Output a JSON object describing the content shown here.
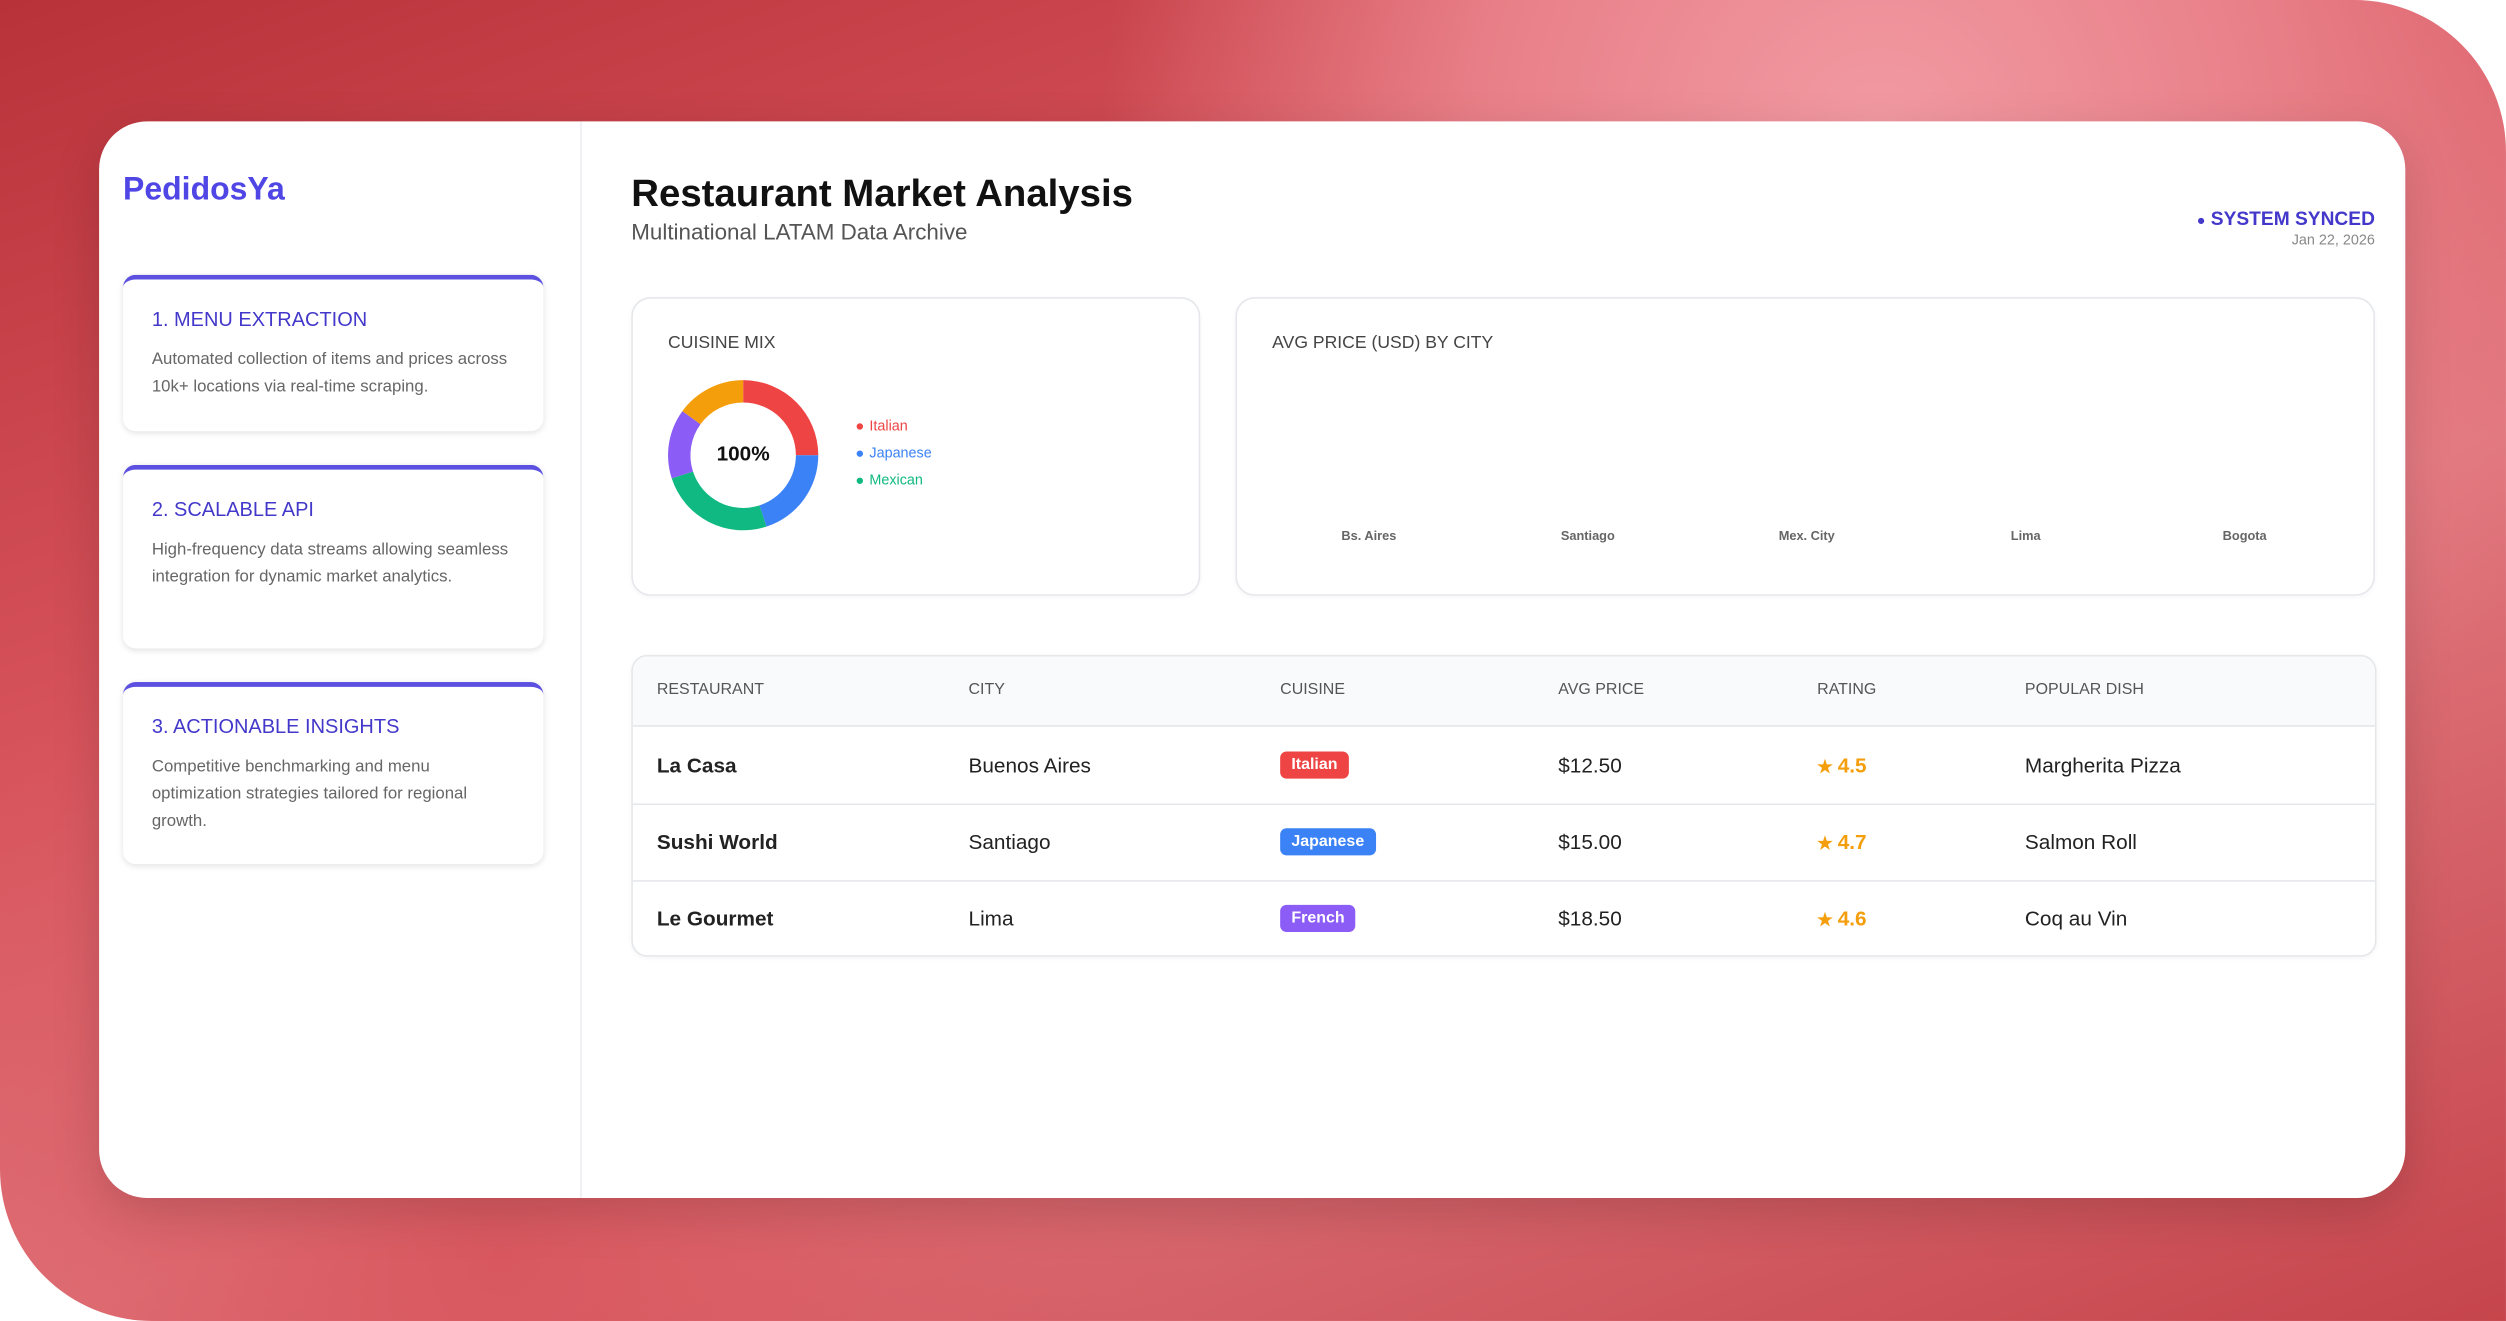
{
  "brand": "PedidosYa",
  "sidebar": [
    {
      "title": "1. MENU EXTRACTION",
      "text": "Automated collection of items and prices across 10k+ locations via real-time scraping."
    },
    {
      "title": "2. SCALABLE API",
      "text": "High-frequency data streams allowing seamless integration for dynamic market analytics."
    },
    {
      "title": "3. ACTIONABLE INSIGHTS",
      "text": "Competitive benchmarking and menu optimization strategies tailored for regional growth."
    }
  ],
  "header": {
    "title": "Restaurant Market Analysis",
    "subtitle": "Multinational LATAM Data Archive",
    "status": "SYSTEM SYNCED",
    "date": "Jan 22, 2026"
  },
  "chart_data": [
    {
      "type": "pie",
      "title": "CUISINE MIX",
      "center_label": "100%",
      "categories": [
        "Italian",
        "Japanese",
        "Mexican",
        null,
        null
      ],
      "values": [
        25,
        20,
        25,
        15,
        15
      ],
      "colors": [
        "#ef4444",
        "#3b82f6",
        "#10b981",
        "#8b5cf6",
        "#f59e0b"
      ]
    },
    {
      "type": "bar",
      "title": "AVG PRICE (USD) BY CITY",
      "categories": [
        "Bs. Aires",
        "Santiago",
        "Mex. City",
        "Lima",
        "Bogota"
      ],
      "values": [
        null,
        null,
        null,
        null,
        null
      ]
    }
  ],
  "table": {
    "headers": [
      "RESTAURANT",
      "CITY",
      "CUISINE",
      "AVG PRICE",
      "RATING",
      "POPULAR DISH"
    ],
    "rows": [
      [
        "La Casa",
        "Buenos Aires",
        "Italian",
        "$12.50",
        4.5,
        "Margherita Pizza"
      ],
      [
        "Sushi World",
        "Santiago",
        "Japanese",
        "$15.00",
        4.7,
        "Salmon Roll"
      ],
      [
        "Le Gourmet",
        "Lima",
        "French",
        "$18.50",
        4.6,
        "Coq au Vin"
      ]
    ],
    "badge_colors": {
      "Italian": "#ef4444",
      "Japanese": "#3b82f6",
      "French": "#8b5cf6"
    }
  }
}
